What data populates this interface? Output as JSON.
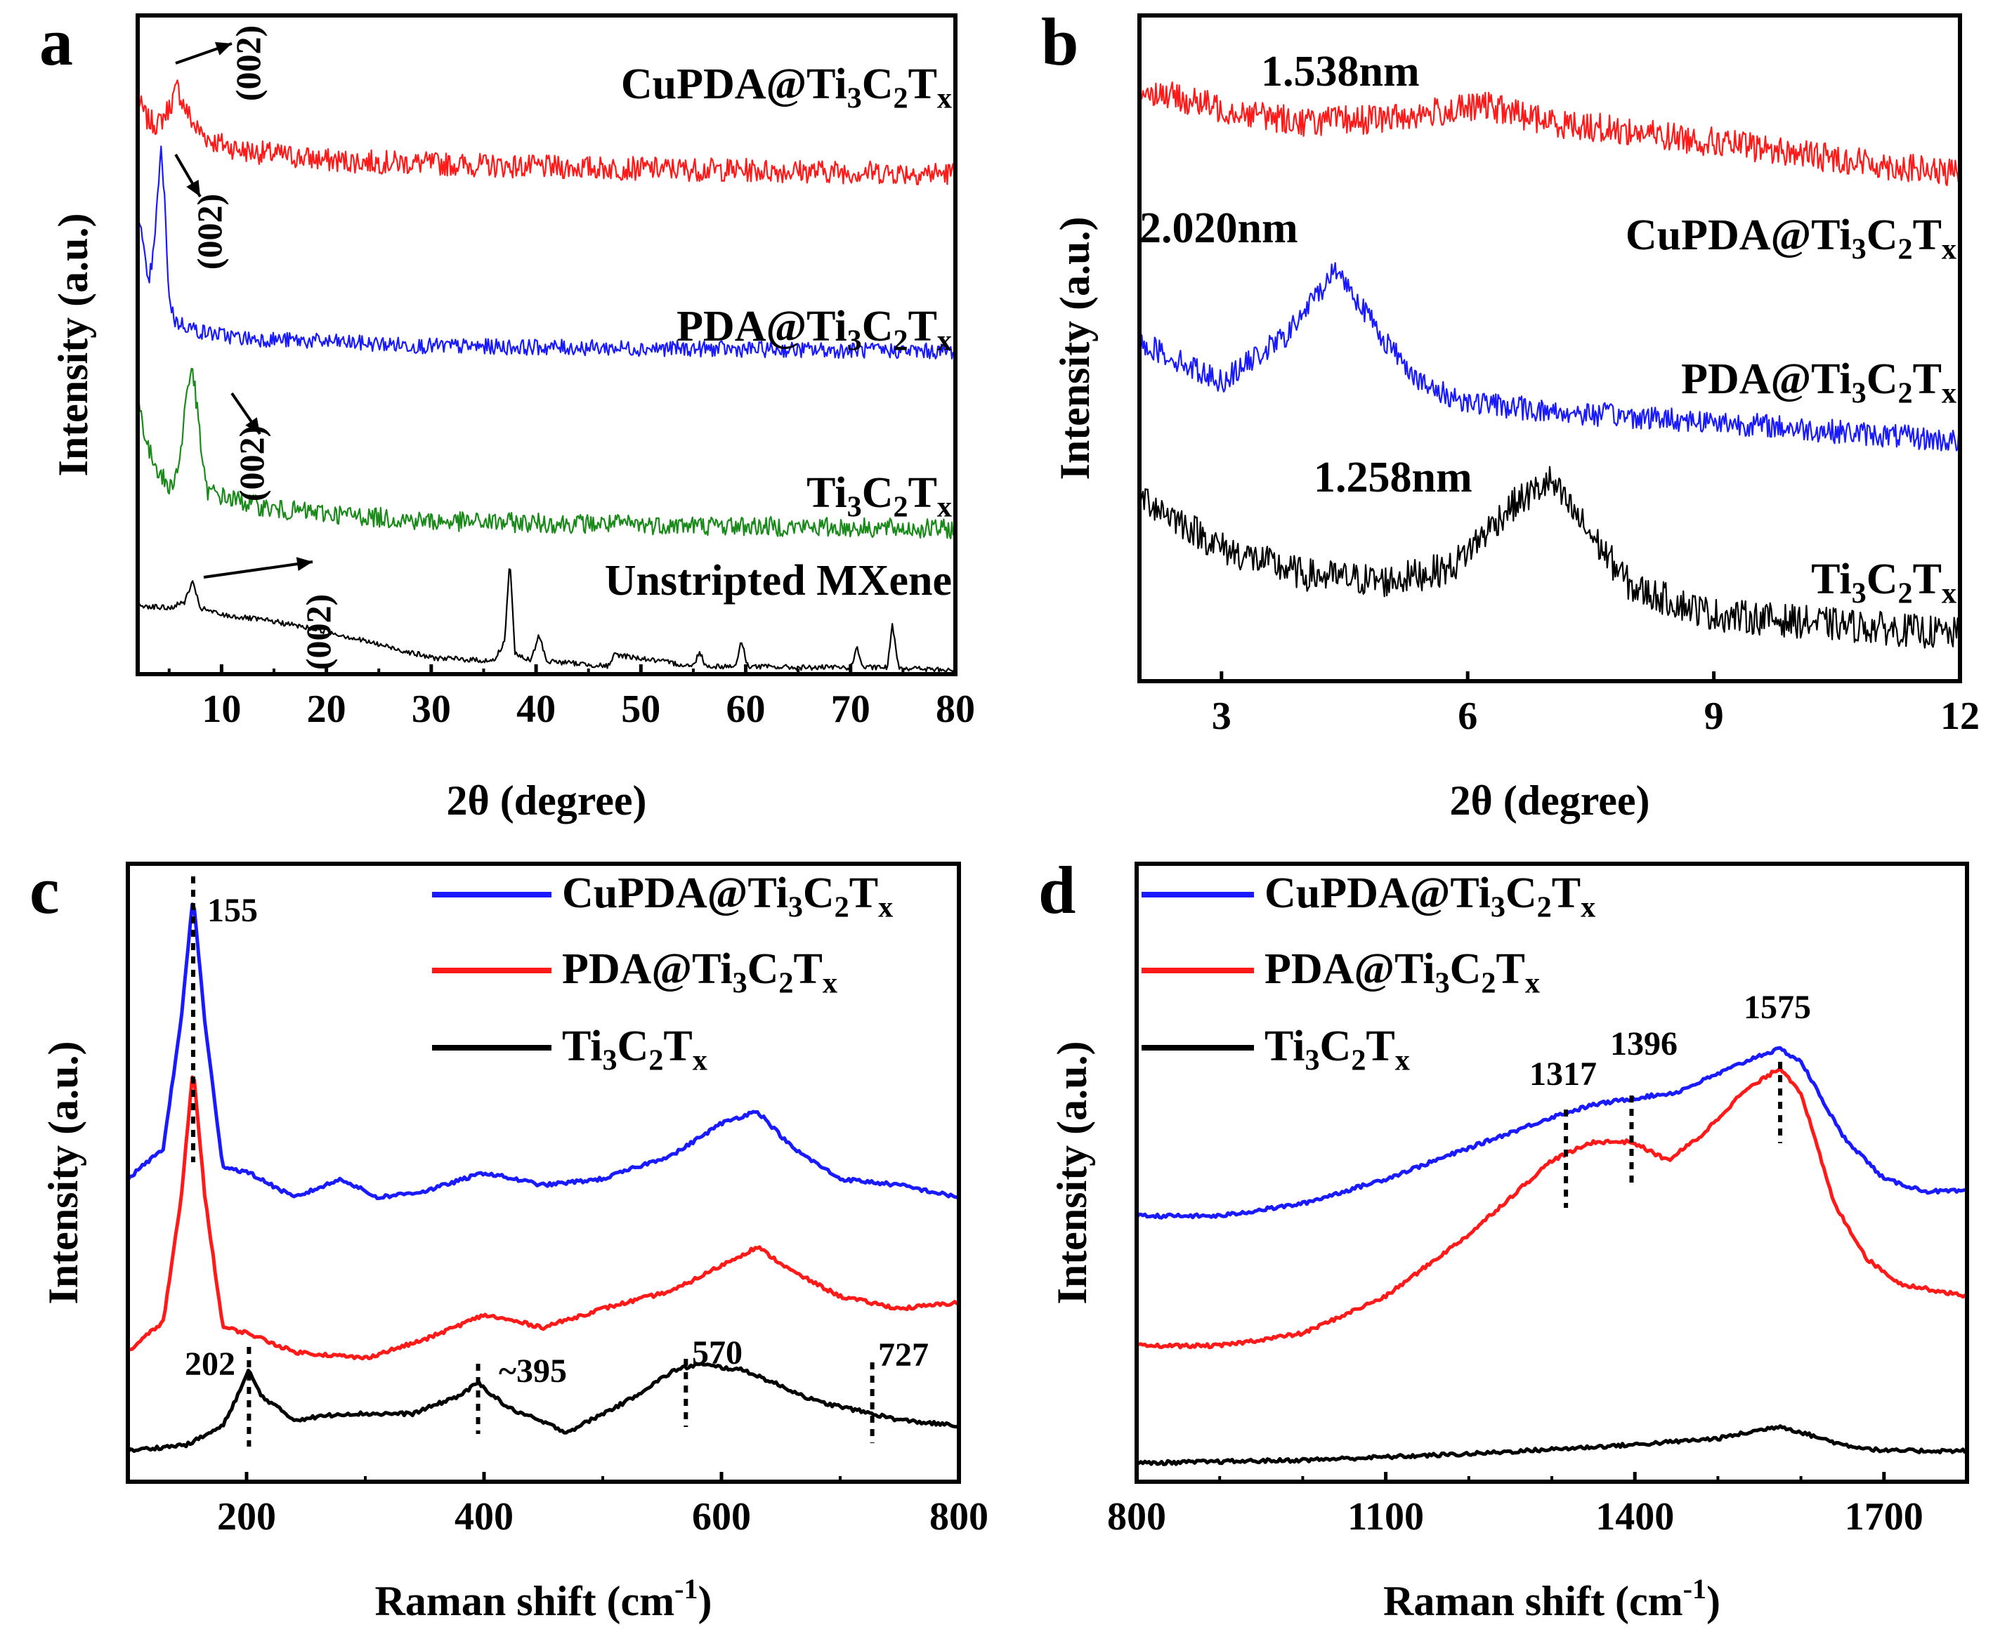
{
  "colors": {
    "red": "#ff1a1a",
    "blue": "#1a1aff",
    "green": "#1a8a1a",
    "black": "#000000"
  },
  "chart_data": [
    {
      "panel": "a",
      "type": "line",
      "title": "",
      "xlabel": "2θ (degree)",
      "ylabel": "Intensity (a.u.)",
      "xlim": [
        2,
        80
      ],
      "ylim": [
        0,
        10
      ],
      "xticks": [
        10,
        20,
        30,
        40,
        50,
        60,
        70,
        80
      ],
      "tick_labels": [
        "10",
        "20",
        "30",
        "40",
        "50",
        "60",
        "70",
        "80"
      ],
      "series": [
        {
          "name": "CuPDA@Ti3C2Tx",
          "label": "CuPDA@Ti",
          "subs": [
            "3",
            "C",
            "2",
            "T",
            "x"
          ],
          "color": "red",
          "offset": 7.6,
          "noise": 0.18,
          "x": [
            2,
            3,
            4,
            5,
            5.8,
            6.5,
            7.5,
            9,
            12,
            20,
            40,
            80
          ],
          "y": [
            1.1,
            0.8,
            0.75,
            1.0,
            1.3,
            1.0,
            0.7,
            0.5,
            0.35,
            0.2,
            0.1,
            0.0
          ]
        },
        {
          "name": "PDA@Ti3C2Tx",
          "label": "PDA@Ti",
          "subs": [
            "3",
            "C",
            "2",
            "T",
            "x"
          ],
          "color": "blue",
          "offset": 4.9,
          "noise": 0.12,
          "x": [
            2,
            3,
            3.6,
            4.2,
            4.6,
            5,
            5.6,
            6.5,
            8,
            12,
            30,
            80
          ],
          "y": [
            2.2,
            1.0,
            1.6,
            3.1,
            2.2,
            0.8,
            0.45,
            0.4,
            0.3,
            0.2,
            0.08,
            0.0
          ]
        },
        {
          "name": "Ti3C2Tx",
          "label": "Ti",
          "subs": [
            "3",
            "C",
            "2",
            "T",
            "x"
          ],
          "color": "green",
          "offset": 2.2,
          "noise": 0.15,
          "x": [
            2,
            3,
            4,
            5,
            6,
            6.6,
            7.2,
            7.8,
            8.5,
            10,
            15,
            30,
            80
          ],
          "y": [
            2.0,
            1.2,
            0.9,
            0.6,
            1.0,
            2.0,
            2.5,
            1.6,
            0.6,
            0.5,
            0.3,
            0.12,
            0.0
          ]
        },
        {
          "name": "Unstripted MXene",
          "label": "Unstripted MXene",
          "subs": [],
          "color": "black",
          "offset": 0.0,
          "noise": 0.04,
          "x": [
            2,
            5,
            6.5,
            7.2,
            8,
            10,
            15,
            20,
            30,
            36,
            37,
            37.5,
            38,
            39.5,
            40.3,
            41,
            47,
            47.5,
            55,
            55.6,
            56.2,
            59,
            59.6,
            60.2,
            65,
            70,
            70.6,
            71.2,
            73.5,
            74,
            74.6,
            80
          ],
          "y": [
            1.05,
            1.0,
            1.1,
            1.4,
            1.0,
            0.9,
            0.8,
            0.65,
            0.25,
            0.2,
            0.5,
            1.75,
            0.3,
            0.2,
            0.6,
            0.2,
            0.12,
            0.3,
            0.12,
            0.35,
            0.12,
            0.12,
            0.5,
            0.12,
            0.1,
            0.1,
            0.4,
            0.1,
            0.1,
            0.75,
            0.1,
            0.05
          ]
        }
      ],
      "annotations": [
        {
          "text": "(002)",
          "x": 10.5,
          "y": 9.4
        },
        {
          "text": "(002)",
          "x": 9.0,
          "y": 6.6
        },
        {
          "text": "(002)",
          "x": 13.0,
          "y": 4.2
        },
        {
          "text": "(002)",
          "x": 20.5,
          "y": 1.2
        }
      ]
    },
    {
      "panel": "b",
      "type": "line",
      "title": "",
      "xlabel": "2θ (degree)",
      "ylabel": "Intensity (a.u.)",
      "xlim": [
        2,
        12
      ],
      "ylim": [
        0,
        10
      ],
      "xticks": [
        3,
        6,
        9,
        12
      ],
      "tick_labels": [
        "3",
        "6",
        "9",
        "12"
      ],
      "series": [
        {
          "name": "CuPDA@Ti3C2Tx",
          "label": "CuPDA@Ti",
          "subs": [
            "3",
            "C",
            "2",
            "T",
            "x"
          ],
          "color": "red",
          "offset": 7.6,
          "noise": 0.22,
          "x": [
            2,
            3,
            4,
            5,
            6,
            6.2,
            7,
            9,
            12
          ],
          "y": [
            1.3,
            1.0,
            0.8,
            0.85,
            1.0,
            1.05,
            0.8,
            0.5,
            0.0
          ]
        },
        {
          "name": "PDA@Ti3C2Tx",
          "label": "PDA@Ti",
          "subs": [
            "3",
            "C",
            "2",
            "T",
            "x"
          ],
          "color": "blue",
          "offset": 3.6,
          "noise": 0.18,
          "x": [
            2,
            3,
            3.8,
            4.4,
            5,
            5.5,
            6,
            7,
            9,
            12
          ],
          "y": [
            1.5,
            0.9,
            1.6,
            2.6,
            1.5,
            0.8,
            0.6,
            0.45,
            0.3,
            0.0
          ]
        },
        {
          "name": "Ti3C2Tx",
          "label": "Ti",
          "subs": [
            "3",
            "C",
            "2",
            "T",
            "x"
          ],
          "color": "black",
          "offset": 0.6,
          "noise": 0.25,
          "x": [
            2,
            3,
            4,
            5,
            5.8,
            6.5,
            7.0,
            7.5,
            8,
            9,
            10,
            12
          ],
          "y": [
            2.2,
            1.4,
            1.0,
            0.9,
            1.1,
            2.0,
            2.4,
            1.6,
            0.8,
            0.4,
            0.3,
            0.1
          ]
        }
      ],
      "annotations": [
        {
          "text": "1.538nm"
        },
        {
          "text": "2.020nm"
        },
        {
          "text": "1.258nm"
        }
      ]
    },
    {
      "panel": "c",
      "type": "line",
      "title": "",
      "xlabel": "Raman shift (cm",
      "xlabel_sup": "-1",
      "xlabel_end": ")",
      "ylabel": "Intensity (a.u.)",
      "xlim": [
        100,
        800
      ],
      "ylim": [
        0,
        10
      ],
      "xticks": [
        200,
        400,
        600,
        800
      ],
      "tick_labels": [
        "200",
        "400",
        "600",
        "800"
      ],
      "series": [
        {
          "name": "CuPDA@Ti3C2Tx",
          "label": "CuPDA@Ti",
          "subs": [
            "3",
            "C",
            "2",
            "T",
            "x"
          ],
          "color": "blue",
          "x": [
            100,
            130,
            145,
            155,
            165,
            180,
            202,
            240,
            280,
            310,
            350,
            400,
            450,
            500,
            560,
            600,
            630,
            660,
            700,
            750,
            800
          ],
          "y": [
            4.9,
            5.4,
            7.5,
            9.5,
            7.4,
            5.1,
            5.0,
            4.6,
            4.9,
            4.6,
            4.7,
            5.0,
            4.8,
            4.9,
            5.3,
            5.8,
            6.0,
            5.4,
            4.9,
            4.8,
            4.6
          ]
        },
        {
          "name": "PDA@Ti3C2Tx",
          "label": "PDA@Ti",
          "subs": [
            "3",
            "C",
            "2",
            "T",
            "x"
          ],
          "color": "red",
          "x": [
            100,
            130,
            145,
            155,
            165,
            180,
            202,
            240,
            300,
            350,
            400,
            450,
            500,
            560,
            600,
            630,
            660,
            700,
            750,
            800
          ],
          "y": [
            2.1,
            2.6,
            4.6,
            6.7,
            4.6,
            2.5,
            2.4,
            2.1,
            2.0,
            2.3,
            2.7,
            2.5,
            2.8,
            3.1,
            3.5,
            3.8,
            3.4,
            3.0,
            2.8,
            2.9
          ]
        },
        {
          "name": "Ti3C2Tx",
          "label": "Ti",
          "subs": [
            "3",
            "C",
            "2",
            "T",
            "x"
          ],
          "color": "black",
          "x": [
            100,
            150,
            180,
            195,
            202,
            212,
            240,
            280,
            340,
            380,
            395,
            420,
            470,
            520,
            560,
            580,
            620,
            680,
            727,
            750,
            800
          ],
          "y": [
            0.5,
            0.6,
            0.9,
            1.5,
            1.8,
            1.4,
            1.0,
            1.1,
            1.1,
            1.4,
            1.6,
            1.2,
            0.8,
            1.3,
            1.8,
            1.9,
            1.8,
            1.3,
            1.1,
            1.0,
            0.9
          ]
        }
      ],
      "annotations": [
        {
          "text": "155",
          "xv": 155
        },
        {
          "text": "202",
          "xv": 202
        },
        {
          "text": "~395",
          "xv": 395
        },
        {
          "text": "570",
          "xv": 570
        },
        {
          "text": "727",
          "xv": 727
        }
      ]
    },
    {
      "panel": "d",
      "type": "line",
      "title": "",
      "xlabel": "Raman shift (cm",
      "xlabel_sup": "-1",
      "xlabel_end": ")",
      "ylabel": "Intensity (a.u.)",
      "xlim": [
        800,
        1800
      ],
      "ylim": [
        0,
        10
      ],
      "xticks": [
        800,
        1100,
        1400,
        1700
      ],
      "tick_labels": [
        "800",
        "1100",
        "1400",
        "1700"
      ],
      "series": [
        {
          "name": "CuPDA@Ti3C2Tx",
          "label": "CuPDA@Ti",
          "subs": [
            "3",
            "C",
            "2",
            "T",
            "x"
          ],
          "color": "blue",
          "x": [
            800,
            900,
            1000,
            1100,
            1200,
            1300,
            1350,
            1396,
            1450,
            1500,
            1550,
            1575,
            1600,
            1650,
            1700,
            1750,
            1800
          ],
          "y": [
            4.3,
            4.3,
            4.5,
            4.9,
            5.4,
            5.9,
            6.1,
            6.2,
            6.3,
            6.6,
            6.9,
            7.0,
            6.8,
            5.6,
            4.9,
            4.7,
            4.7
          ]
        },
        {
          "name": "PDA@Ti3C2Tx",
          "label": "PDA@Ti",
          "subs": [
            "3",
            "C",
            "2",
            "T",
            "x"
          ],
          "color": "red",
          "x": [
            800,
            900,
            1000,
            1100,
            1200,
            1250,
            1300,
            1350,
            1396,
            1440,
            1480,
            1530,
            1575,
            1600,
            1640,
            1680,
            1720,
            1760,
            1800
          ],
          "y": [
            2.2,
            2.2,
            2.4,
            3.0,
            4.0,
            4.6,
            5.2,
            5.5,
            5.5,
            5.2,
            5.6,
            6.3,
            6.7,
            6.3,
            4.5,
            3.6,
            3.2,
            3.1,
            3.0
          ]
        },
        {
          "name": "Ti3C2Tx",
          "label": "Ti",
          "subs": [
            "3",
            "C",
            "2",
            "T",
            "x"
          ],
          "color": "black",
          "x": [
            800,
            1000,
            1200,
            1400,
            1500,
            1575,
            1650,
            1700,
            1800
          ],
          "y": [
            0.3,
            0.35,
            0.45,
            0.6,
            0.7,
            0.9,
            0.6,
            0.5,
            0.5
          ]
        }
      ],
      "annotations": [
        {
          "text": "1317",
          "xv": 1317
        },
        {
          "text": "1396",
          "xv": 1396
        },
        {
          "text": "1575",
          "xv": 1575
        }
      ]
    }
  ]
}
